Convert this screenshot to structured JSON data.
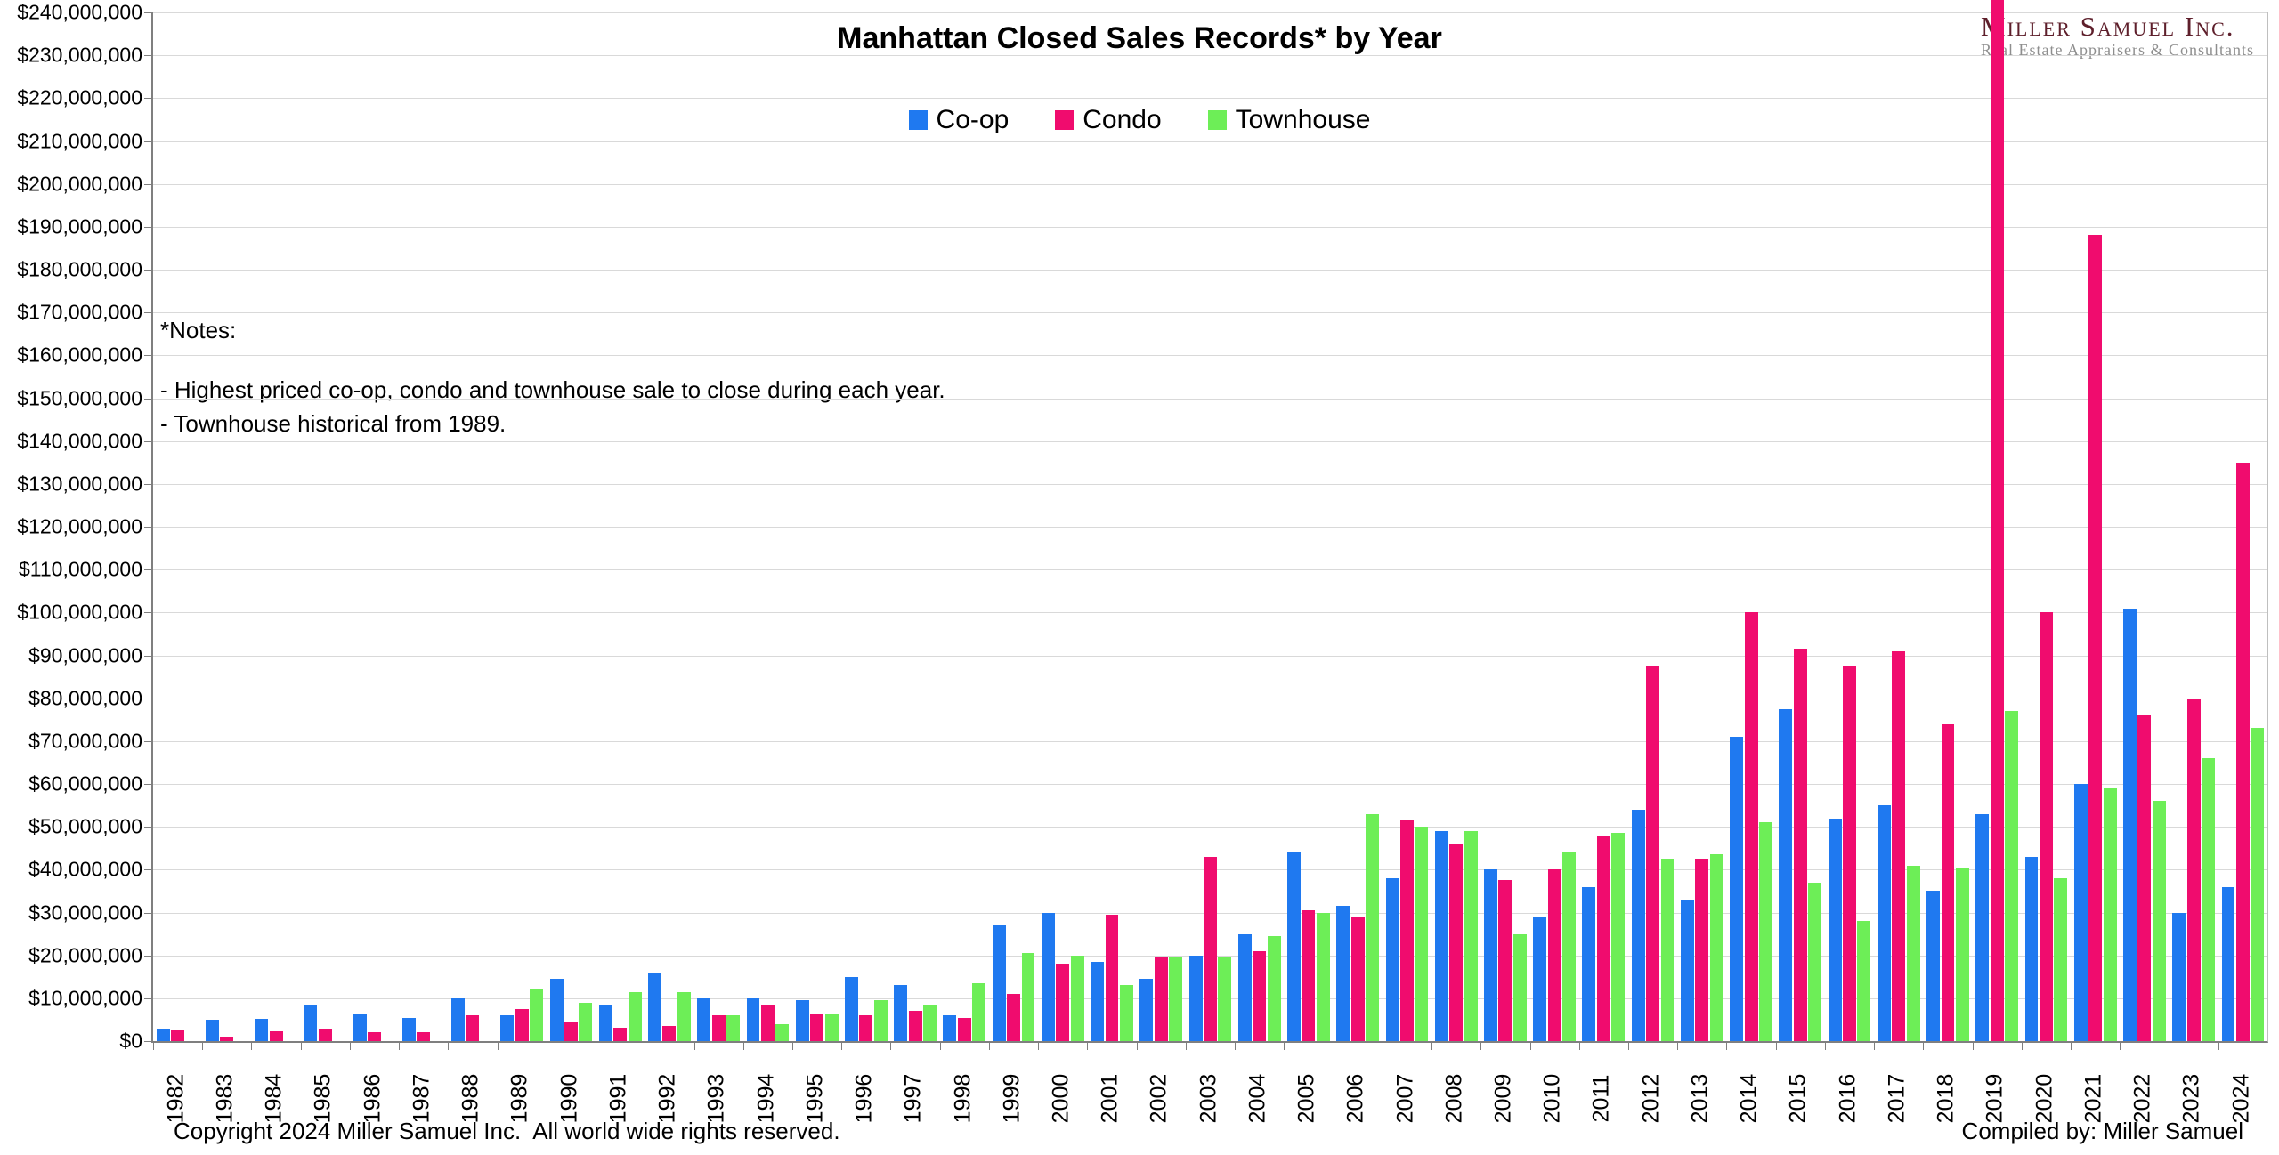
{
  "title": "Manhattan Closed Sales Records* by Year",
  "logo": {
    "line1": "Miller Samuel Inc.",
    "line2": "Real Estate Appraisers & Consultants"
  },
  "notes": {
    "heading": "*Notes:",
    "lines": [
      "- Highest priced co-op, condo and townhouse sale to close during each year.",
      "- Townhouse historical from 1989."
    ]
  },
  "footer": {
    "copyright": "Copyright 2024 Miller Samuel Inc.  All world wide rights reserved.",
    "compiled_by": "Compiled by: Miller Samuel"
  },
  "colors": {
    "coop": "#1f79f0",
    "condo": "#f00c6e",
    "townhouse": "#6dee57",
    "gridline": "#d9d9d9",
    "axis": "#7f7f7f",
    "logo_maroon": "#5e1f2b",
    "logo_gray": "#8e8e8e"
  },
  "chart_data": {
    "type": "bar",
    "title": "Manhattan Closed Sales Records* by Year",
    "xlabel": "",
    "ylabel": "",
    "ylim": [
      0,
      240000000
    ],
    "ytick_step": 10000000,
    "ytick_format": "$#,##0",
    "grid": true,
    "legend_position": "top-center",
    "categories": [
      1982,
      1983,
      1984,
      1985,
      1986,
      1987,
      1988,
      1989,
      1990,
      1991,
      1992,
      1993,
      1994,
      1995,
      1996,
      1997,
      1998,
      1999,
      2000,
      2001,
      2002,
      2003,
      2004,
      2005,
      2006,
      2007,
      2008,
      2009,
      2010,
      2011,
      2012,
      2013,
      2014,
      2015,
      2016,
      2017,
      2018,
      2019,
      2020,
      2021,
      2022,
      2023,
      2024
    ],
    "series": [
      {
        "name": "Co-op",
        "color": "#1f79f0",
        "values": [
          3000000,
          5000000,
          5200000,
          8500000,
          6200000,
          5500000,
          10000000,
          6000000,
          14500000,
          8500000,
          16000000,
          10000000,
          10000000,
          9500000,
          15000000,
          13000000,
          6000000,
          27000000,
          30000000,
          18500000,
          14500000,
          20000000,
          25000000,
          44000000,
          31500000,
          38000000,
          49000000,
          40000000,
          29000000,
          36000000,
          54000000,
          33000000,
          71000000,
          77500000,
          52000000,
          55000000,
          35000000,
          53000000,
          43000000,
          60000000,
          101000000,
          30000000,
          36000000
        ]
      },
      {
        "name": "Condo",
        "color": "#f00c6e",
        "values": [
          2500000,
          1000000,
          2200000,
          3000000,
          2000000,
          2000000,
          6000000,
          7500000,
          4500000,
          3200000,
          3500000,
          6000000,
          8500000,
          6500000,
          6000000,
          7000000,
          5500000,
          11000000,
          18000000,
          29500000,
          19500000,
          43000000,
          21000000,
          30500000,
          29000000,
          51500000,
          46000000,
          37500000,
          40000000,
          48000000,
          87500000,
          42500000,
          100000000,
          91500000,
          87500000,
          91000000,
          74000000,
          240000000,
          100000000,
          188000000,
          76000000,
          80000000,
          135000000
        ]
      },
      {
        "name": "Townhouse",
        "color": "#6dee57",
        "values": [
          null,
          null,
          null,
          null,
          null,
          null,
          null,
          12000000,
          9000000,
          11500000,
          11500000,
          6000000,
          4000000,
          6500000,
          9500000,
          8500000,
          13500000,
          20500000,
          20000000,
          13000000,
          19500000,
          19500000,
          24500000,
          30000000,
          53000000,
          50000000,
          49000000,
          25000000,
          44000000,
          48500000,
          42500000,
          43500000,
          51000000,
          37000000,
          28000000,
          41000000,
          40500000,
          77000000,
          38000000,
          59000000,
          56000000,
          66000000,
          73000000
        ]
      }
    ],
    "clipped_bars": [
      {
        "year": 2019,
        "series": "Condo"
      }
    ]
  }
}
